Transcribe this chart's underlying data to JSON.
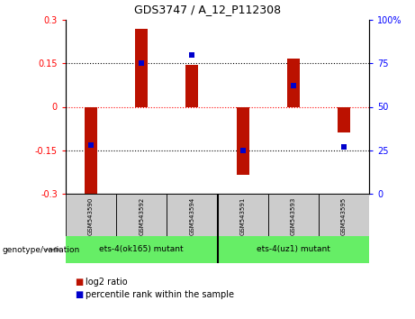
{
  "title": "GDS3747 / A_12_P112308",
  "samples": [
    "GSM543590",
    "GSM543592",
    "GSM543594",
    "GSM543591",
    "GSM543593",
    "GSM543595"
  ],
  "log2_ratios": [
    -0.305,
    0.27,
    0.145,
    -0.235,
    0.165,
    -0.09
  ],
  "percentile_ranks": [
    28,
    75,
    80,
    25,
    62,
    27
  ],
  "groups": [
    {
      "label": "ets-4(ok165) mutant",
      "indices": [
        0,
        1,
        2
      ],
      "color": "#66EE66"
    },
    {
      "label": "ets-4(uz1) mutant",
      "indices": [
        3,
        4,
        5
      ],
      "color": "#66EE66"
    }
  ],
  "bar_color": "#BB1100",
  "dot_color": "#0000CC",
  "ylim_left": [
    -0.3,
    0.3
  ],
  "ylim_right": [
    0,
    100
  ],
  "yticks_left": [
    -0.3,
    -0.15,
    0,
    0.15,
    0.3
  ],
  "yticks_right": [
    0,
    25,
    50,
    75,
    100
  ],
  "bg_color": "#FFFFFF",
  "plot_bg": "#FFFFFF",
  "sample_box_color": "#CCCCCC",
  "legend_bar_label": "log2 ratio",
  "legend_dot_label": "percentile rank within the sample",
  "genotype_label": "genotype/variation"
}
